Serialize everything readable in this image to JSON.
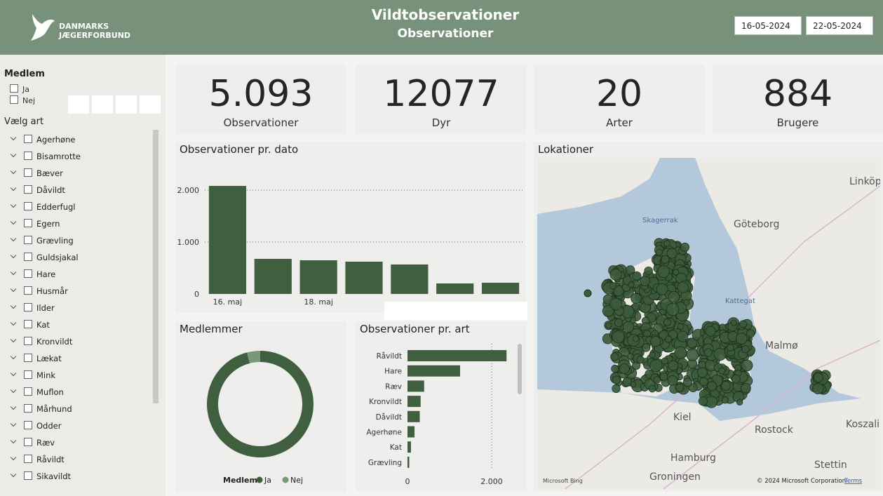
{
  "header": {
    "logo_line1": "DANMARKS",
    "logo_line2": "JÆGERFORBUND",
    "title": "Vildtobservationer",
    "subtitle": "Observationer",
    "date_from": "16-05-2024",
    "date_to": "22-05-2024"
  },
  "sidebar": {
    "member_title": "Medlem",
    "member_options": [
      "Ja",
      "Nej"
    ],
    "species_title": "Vælg art",
    "species": [
      "Agerhøne",
      "Bisamrotte",
      "Bæver",
      "Dåvildt",
      "Edderfugl",
      "Egern",
      "Grævling",
      "Guldsjakal",
      "Hare",
      "Husmår",
      "Ilder",
      "Kat",
      "Kronvildt",
      "Lækat",
      "Mink",
      "Muflon",
      "Mårhund",
      "Odder",
      "Ræv",
      "Råvildt",
      "Sikavildt"
    ]
  },
  "kpis": [
    {
      "value": "5.093",
      "label": "Observationer"
    },
    {
      "value": "12077",
      "label": "Dyr"
    },
    {
      "value": "20",
      "label": "Arter"
    },
    {
      "value": "884",
      "label": "Brugere"
    }
  ],
  "date_chart": {
    "type": "bar",
    "title": "Observationer pr. dato",
    "categories": [
      "16. maj",
      null,
      "18. maj",
      null,
      null,
      null,
      null
    ],
    "values": [
      2081,
      676,
      649,
      622,
      568,
      203,
      216
    ],
    "color": "#3f5f3e",
    "ylim": [
      0,
      2216
    ],
    "yticks": [
      0,
      {
        "value": 1000,
        "label": "1.000"
      },
      {
        "value": 2000,
        "label": "2.000"
      }
    ],
    "grid": true
  },
  "member_chart": {
    "type": "pie",
    "title": "Medlemmer",
    "legend_title": "Medlem",
    "series": [
      {
        "name": "Ja",
        "color": "#3f5f3e",
        "value": 96
      },
      {
        "name": "Nej",
        "color": "#7c9679",
        "value": 4
      }
    ]
  },
  "species_chart": {
    "type": "bar",
    "title": "Observationer pr. art",
    "categories": [
      "Råvildt",
      "Hare",
      "Ræv",
      "Kronvildt",
      "Dåvildt",
      "Agerhøne",
      "Kat",
      "Grævling"
    ],
    "values": [
      2354,
      1250,
      396,
      312,
      292,
      167,
      83,
      42
    ],
    "color": "#3f5f3e",
    "xlim": [
      0,
      2600
    ],
    "xticks": [
      0,
      {
        "value": 2000,
        "label": "2.000"
      }
    ],
    "grid": true
  },
  "map": {
    "title": "Lokationer",
    "places": [
      "Skagerrak",
      "Göteborg",
      "Linköp",
      "Kattegat",
      "Malmø",
      "Kiel",
      "Rostock",
      "Koszalin",
      "Hamburg",
      "Groningen",
      "Stettin"
    ],
    "brand": "Microsoft Bing",
    "copyright": "© 2024 Microsoft Corporation",
    "terms": "Terms"
  }
}
